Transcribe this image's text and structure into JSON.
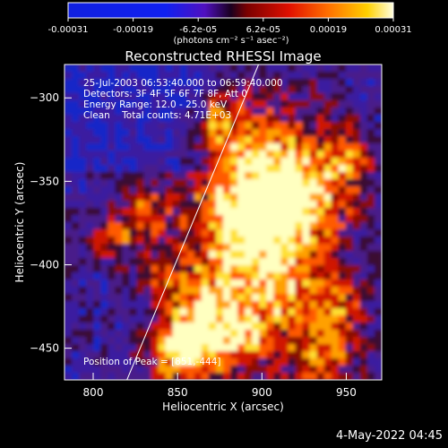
{
  "chart_data": {
    "type": "heatmap",
    "title": "Reconstructed RHESSI Image",
    "xlabel": "Heliocentric X (arcsec)",
    "ylabel": "Heliocentric Y (arcsec)",
    "xlim": [
      783,
      971
    ],
    "ylim": [
      -469,
      -280
    ],
    "xticks": [
      800,
      850,
      900,
      950
    ],
    "yticks": [
      -300,
      -350,
      -400,
      -450
    ],
    "colorbar": {
      "ticks": [
        "-0.00031",
        "-0.00019",
        "-6.2e-05",
        "6.2e-05",
        "0.00019",
        "0.00031"
      ],
      "range": [
        -0.00031,
        0.00031
      ],
      "units_label": "(photons cm⁻² s⁻¹ asec⁻²)"
    },
    "annotations": [
      "25-Jul-2003 06:53:40.000 to 06:59:40.000",
      "Detectors: 3F 4F 5F 6F 7F 8F, Att 0",
      "Energy Range: 12.0 - 25.0 keV",
      "Clean    Total counts: 4.71E+03"
    ],
    "peak_label": "Position of Peak = [851,-444]",
    "limb_line": {
      "x": [
        820,
        898
      ],
      "y": [
        -469,
        -280
      ]
    }
  },
  "footer": {
    "timestamp": "4-May-2022 04:45"
  }
}
